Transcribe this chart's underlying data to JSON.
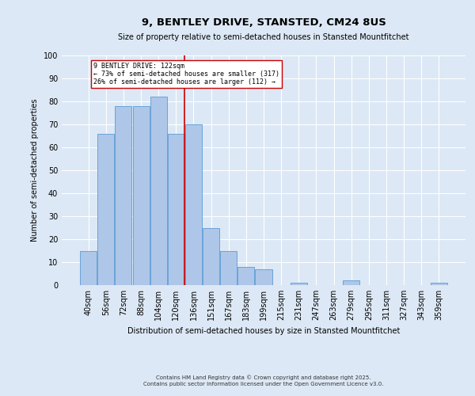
{
  "title": "9, BENTLEY DRIVE, STANSTED, CM24 8US",
  "subtitle": "Size of property relative to semi-detached houses in Stansted Mountfitchet",
  "xlabel": "Distribution of semi-detached houses by size in Stansted Mountfitchet",
  "ylabel": "Number of semi-detached properties",
  "categories": [
    "40sqm",
    "56sqm",
    "72sqm",
    "88sqm",
    "104sqm",
    "120sqm",
    "136sqm",
    "151sqm",
    "167sqm",
    "183sqm",
    "199sqm",
    "215sqm",
    "231sqm",
    "247sqm",
    "263sqm",
    "279sqm",
    "295sqm",
    "311sqm",
    "327sqm",
    "343sqm",
    "359sqm"
  ],
  "values": [
    15,
    66,
    78,
    78,
    82,
    66,
    70,
    25,
    15,
    8,
    7,
    0,
    1,
    0,
    0,
    2,
    0,
    0,
    0,
    0,
    1
  ],
  "bar_color": "#aec6e8",
  "bar_edge_color": "#5b9bd5",
  "vline_x": 5.5,
  "vline_color": "#cc0000",
  "annotation_title": "9 BENTLEY DRIVE: 122sqm",
  "annotation_line1": "← 73% of semi-detached houses are smaller (317)",
  "annotation_line2": "26% of semi-detached houses are larger (112) →",
  "annotation_box_color": "#ffffff",
  "annotation_box_edge": "#cc0000",
  "ylim": [
    0,
    100
  ],
  "footer1": "Contains HM Land Registry data © Crown copyright and database right 2025.",
  "footer2": "Contains public sector information licensed under the Open Government Licence v3.0.",
  "bg_color": "#dce8f5",
  "plot_bg_color": "#dce8f5"
}
